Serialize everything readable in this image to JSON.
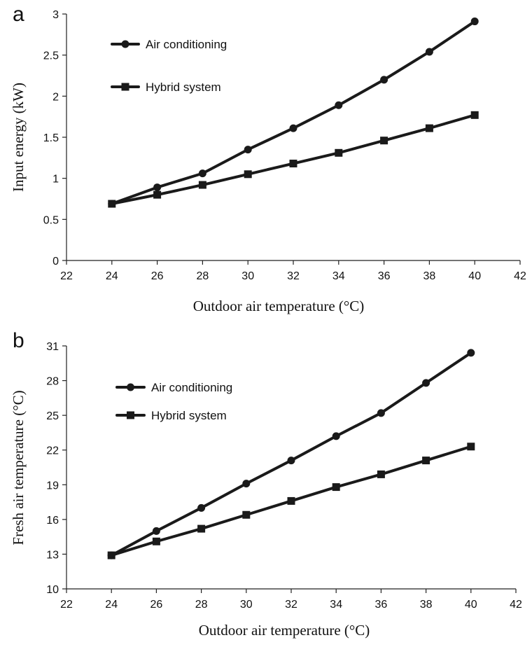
{
  "chart_data": [
    {
      "panel_letter": "a",
      "type": "line",
      "xlabel": "Outdoor air temperature (°C)",
      "ylabel": "Input energy (kW)",
      "xlim": [
        22,
        42
      ],
      "ylim": [
        0,
        3
      ],
      "xticks": [
        22,
        24,
        26,
        28,
        30,
        32,
        34,
        36,
        38,
        40,
        42
      ],
      "yticks": [
        0,
        0.5,
        1,
        1.5,
        2,
        2.5,
        3
      ],
      "ytick_labels": [
        "0",
        "0.5",
        "1",
        "1.5",
        "2",
        "2.5",
        "3"
      ],
      "legend_position": "top-left",
      "series": [
        {
          "name": "Air conditioning",
          "marker": "circle",
          "x": [
            24,
            26,
            28,
            30,
            32,
            34,
            36,
            38,
            40
          ],
          "y": [
            0.69,
            0.89,
            1.06,
            1.35,
            1.61,
            1.89,
            2.2,
            2.54,
            2.91
          ]
        },
        {
          "name": "Hybrid system",
          "marker": "square",
          "x": [
            24,
            26,
            28,
            30,
            32,
            34,
            36,
            38,
            40
          ],
          "y": [
            0.69,
            0.8,
            0.92,
            1.05,
            1.18,
            1.31,
            1.46,
            1.61,
            1.77
          ]
        }
      ]
    },
    {
      "panel_letter": "b",
      "type": "line",
      "xlabel": "Outdoor air temperature (°C)",
      "ylabel": "Fresh air temperature (°C)",
      "xlim": [
        22,
        42
      ],
      "ylim": [
        10,
        31
      ],
      "xticks": [
        22,
        24,
        26,
        28,
        30,
        32,
        34,
        36,
        38,
        40,
        42
      ],
      "yticks": [
        10,
        13,
        16,
        19,
        22,
        25,
        28,
        31
      ],
      "ytick_labels": [
        "10",
        "13",
        "16",
        "19",
        "22",
        "25",
        "28",
        "31"
      ],
      "legend_position": "top-left",
      "series": [
        {
          "name": "Air conditioning",
          "marker": "circle",
          "x": [
            24,
            26,
            28,
            30,
            32,
            34,
            36,
            38,
            40
          ],
          "y": [
            12.9,
            15.0,
            17.0,
            19.1,
            21.1,
            23.2,
            25.2,
            27.8,
            30.4
          ]
        },
        {
          "name": "Hybrid system",
          "marker": "square",
          "x": [
            24,
            26,
            28,
            30,
            32,
            34,
            36,
            38,
            40
          ],
          "y": [
            12.9,
            14.1,
            15.2,
            16.4,
            17.6,
            18.8,
            19.9,
            21.1,
            22.3
          ]
        }
      ]
    }
  ]
}
